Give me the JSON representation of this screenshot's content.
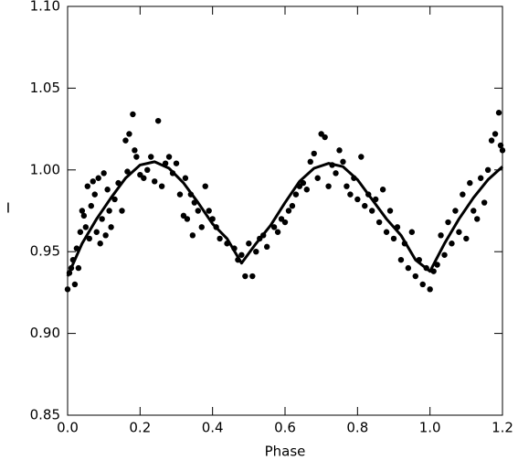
{
  "chart_data": {
    "type": "scatter",
    "x_label": "Phase",
    "y_label": "I",
    "xlim": [
      0,
      1.2
    ],
    "ylim": [
      0.85,
      1.1
    ],
    "xticks": [
      {
        "value": 0,
        "label": "0.0"
      },
      0.2,
      0.4,
      0.6,
      0.8,
      {
        "value": 1,
        "label": "1.0"
      },
      1.2
    ],
    "yticks": [
      0.85,
      {
        "value": 0.9,
        "label": "0.90"
      },
      0.95,
      {
        "value": 1,
        "label": "1.00"
      },
      1.05,
      {
        "value": 1.1,
        "label": "1.10"
      }
    ],
    "series": [
      {
        "type": "scatter",
        "color": "#000000",
        "x": [
          0,
          0.005,
          0.01,
          0.015,
          0.02,
          0.025,
          0.03,
          0.035,
          0.04,
          0.045,
          0.05,
          0.055,
          0.06,
          0.065,
          0.07,
          0.075,
          0.08,
          0.085,
          0.09,
          0.095,
          0.1,
          0.105,
          0.11,
          0.115,
          0.12,
          0.13,
          0.14,
          0.15,
          0.16,
          0.165,
          0.17,
          0.18,
          0.185,
          0.19,
          0.2,
          0.21,
          0.22,
          0.23,
          0.24,
          0.25,
          0.26,
          0.27,
          0.28,
          0.29,
          0.3,
          0.31,
          0.32,
          0.325,
          0.33,
          0.34,
          0.345,
          0.35,
          0.36,
          0.37,
          0.38,
          0.39,
          0.4,
          0.41,
          0.42,
          0.44,
          0.46,
          0.47,
          0.48,
          0.49,
          0.5,
          0.51,
          0.52,
          0.53,
          0.54,
          0.55,
          0.57,
          0.58,
          0.59,
          0.6,
          0.61,
          0.62,
          0.63,
          0.64,
          0.65,
          0.66,
          0.67,
          0.68,
          0.69,
          0.7,
          0.71,
          0.72,
          0.73,
          0.74,
          0.75,
          0.76,
          0.77,
          0.78,
          0.79,
          0.8,
          0.81,
          0.82,
          0.83,
          0.84,
          0.85,
          0.86,
          0.87,
          0.88,
          0.89,
          0.9,
          0.91,
          0.92,
          0.93,
          0.94,
          0.95,
          0.96,
          0.97,
          0.98,
          0.99,
          1,
          1.01,
          1.02,
          1.03,
          1.04,
          1.05,
          1.06,
          1.07,
          1.08,
          1.09,
          1.1,
          1.11,
          1.12,
          1.13,
          1.14,
          1.15,
          1.16,
          1.17,
          1.18,
          1.19,
          1.195,
          1.2
        ],
        "values": [
          0.927,
          0.937,
          0.94,
          0.945,
          0.93,
          0.952,
          0.94,
          0.962,
          0.975,
          0.972,
          0.965,
          0.99,
          0.958,
          0.978,
          0.993,
          0.985,
          0.962,
          0.995,
          0.955,
          0.97,
          0.998,
          0.96,
          0.988,
          0.975,
          0.965,
          0.982,
          0.992,
          0.975,
          1.018,
          0.999,
          1.022,
          1.034,
          1.012,
          1.008,
          0.997,
          0.995,
          1.0,
          1.008,
          0.993,
          1.03,
          0.99,
          1.004,
          1.008,
          0.998,
          1.004,
          0.985,
          0.972,
          0.995,
          0.97,
          0.985,
          0.96,
          0.98,
          0.975,
          0.965,
          0.99,
          0.975,
          0.97,
          0.965,
          0.958,
          0.955,
          0.952,
          0.945,
          0.948,
          0.935,
          0.955,
          0.935,
          0.95,
          0.958,
          0.96,
          0.953,
          0.965,
          0.962,
          0.97,
          0.968,
          0.975,
          0.978,
          0.985,
          0.99,
          0.992,
          0.988,
          1.005,
          1.01,
          0.995,
          1.022,
          1.02,
          0.99,
          1.003,
          0.998,
          1.012,
          1.005,
          0.99,
          0.985,
          0.995,
          0.982,
          1.008,
          0.978,
          0.985,
          0.975,
          0.982,
          0.968,
          0.988,
          0.962,
          0.975,
          0.958,
          0.965,
          0.945,
          0.955,
          0.94,
          0.962,
          0.935,
          0.945,
          0.93,
          0.94,
          0.927,
          0.938,
          0.942,
          0.96,
          0.948,
          0.968,
          0.955,
          0.975,
          0.962,
          0.985,
          0.958,
          0.992,
          0.975,
          0.97,
          0.995,
          0.98,
          1.0,
          1.018,
          1.022,
          1.035,
          1.015,
          1.012
        ]
      },
      {
        "type": "line",
        "color": "#000000",
        "x": [
          0,
          0.04,
          0.08,
          0.12,
          0.16,
          0.2,
          0.24,
          0.28,
          0.32,
          0.36,
          0.4,
          0.44,
          0.48,
          0.52,
          0.56,
          0.6,
          0.64,
          0.68,
          0.72,
          0.76,
          0.8,
          0.84,
          0.88,
          0.92,
          0.96,
          1,
          1.04,
          1.08,
          1.12,
          1.16,
          1.2
        ],
        "values": [
          0.935,
          0.955,
          0.97,
          0.983,
          0.995,
          1.003,
          1.005,
          1.001,
          0.992,
          0.98,
          0.967,
          0.958,
          0.943,
          0.955,
          0.966,
          0.98,
          0.993,
          1.001,
          1.004,
          1.002,
          0.994,
          0.982,
          0.97,
          0.96,
          0.945,
          0.938,
          0.955,
          0.97,
          0.983,
          0.994,
          1.002
        ]
      }
    ]
  }
}
